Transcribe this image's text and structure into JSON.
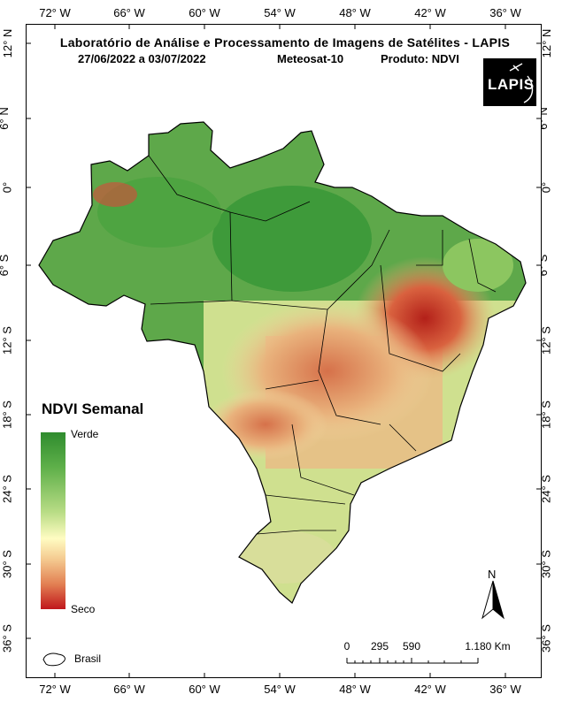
{
  "header": {
    "title": "Laboratório de Análise e Processamento de Imagens de Satélites - LAPIS",
    "period": "27/06/2022  a  03/07/2022",
    "satellite": "Meteosat-10",
    "product": "Produto: NDVI",
    "logo_text": "LAPIS"
  },
  "axes": {
    "longitudes": [
      "72° W",
      "66° W",
      "60° W",
      "54° W",
      "48° W",
      "42° W",
      "36° W"
    ],
    "latitudes": [
      "12° N",
      "6° N",
      "0°",
      "6° S",
      "12° S",
      "18° S",
      "24° S",
      "30° S",
      "36° S"
    ]
  },
  "legend": {
    "title": "NDVI Semanal",
    "high_label": "Verde",
    "low_label": "Seco",
    "outline_label": "Brasil",
    "colors": [
      "#2f8c2e",
      "#5fb04a",
      "#b8dc85",
      "#fffcc2",
      "#f4c98f",
      "#e27f52",
      "#c0171c"
    ]
  },
  "scale_bar": {
    "ticks": [
      "0",
      "295",
      "590",
      "1.180 Km"
    ]
  },
  "north_arrow": {
    "label": "N"
  }
}
